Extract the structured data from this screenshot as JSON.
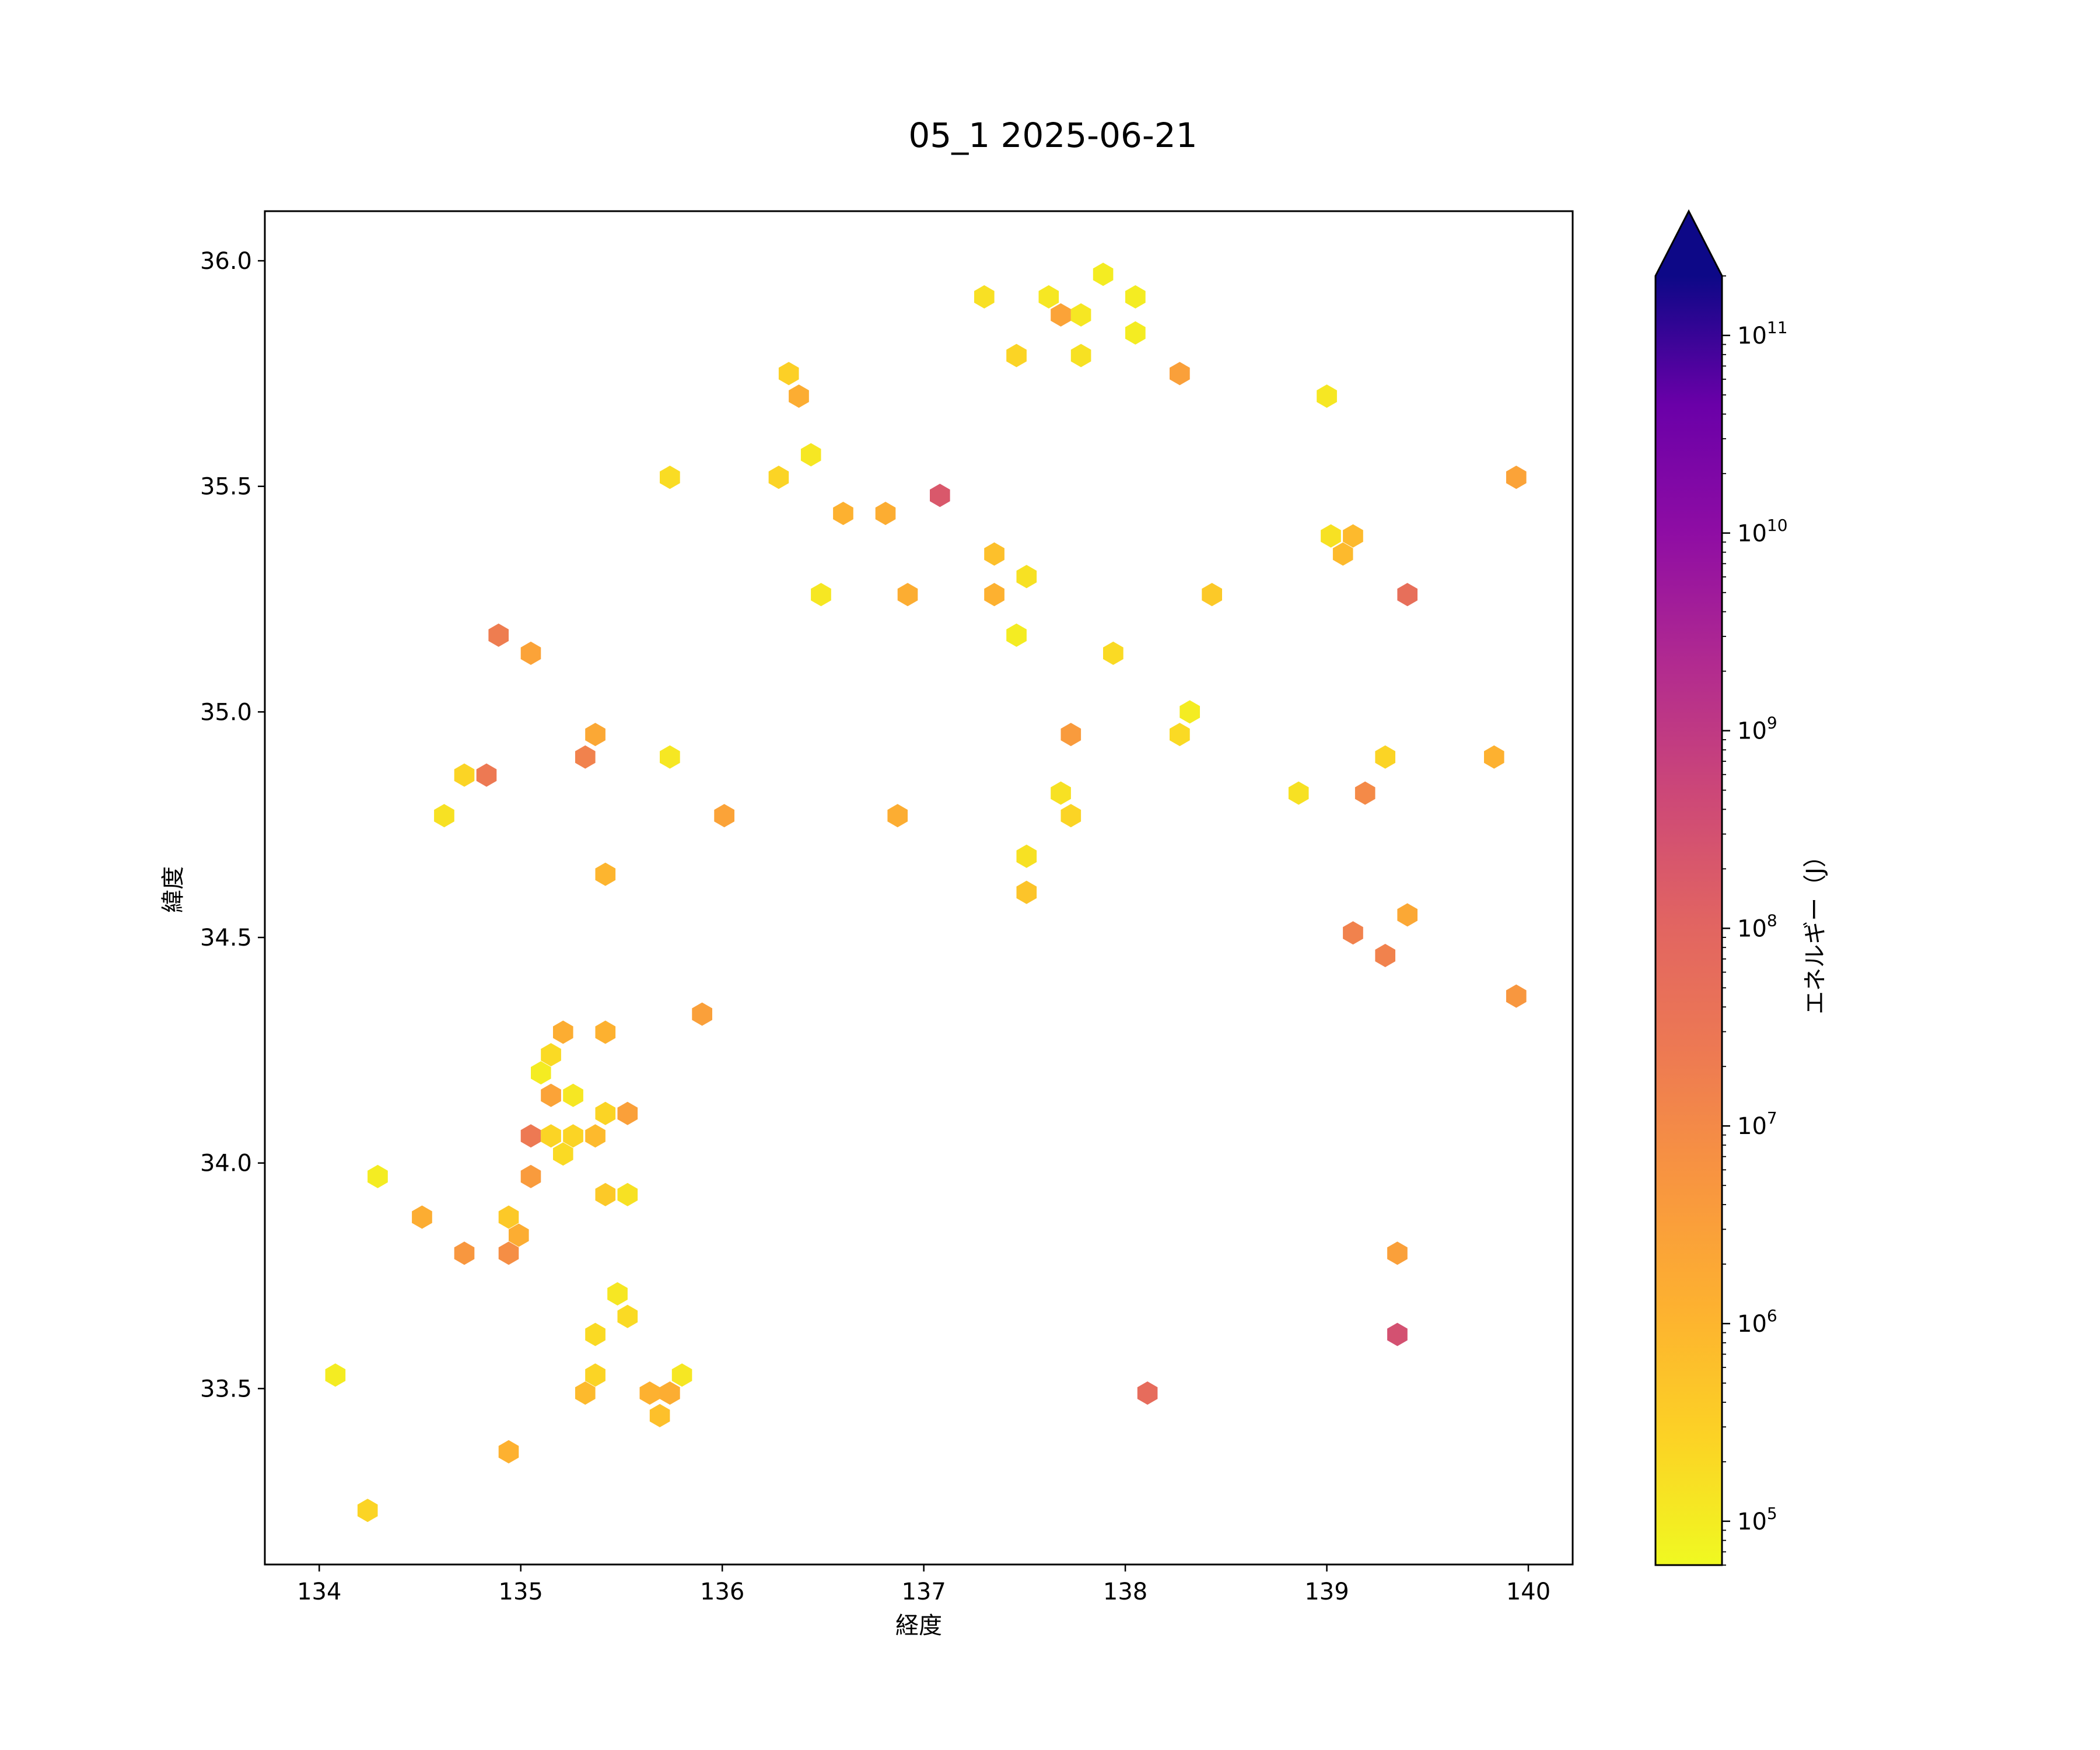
{
  "chart_data": {
    "type": "hexbin",
    "title": "05_1 2025-06-21",
    "xlabel": "経度",
    "ylabel": "緯度",
    "xlim": [
      133.73,
      140.22
    ],
    "ylim": [
      33.11,
      36.11
    ],
    "xticks": [
      134,
      135,
      136,
      137,
      138,
      139,
      140
    ],
    "yticks": [
      33.5,
      34.0,
      34.5,
      35.0,
      35.5,
      36.0
    ],
    "xtick_labels": [
      "134",
      "135",
      "136",
      "137",
      "138",
      "139",
      "140"
    ],
    "ytick_labels": [
      "33.5",
      "34.0",
      "34.5",
      "35.0",
      "35.5",
      "36.0"
    ],
    "grid": false,
    "colorbar": {
      "label": "エネルギー（J）",
      "scale": "log",
      "colormap": "plasma_r",
      "extend": "max",
      "range": [
        60000,
        200000000000
      ],
      "major_ticks": [
        {
          "value": 100000,
          "base": "10",
          "exp": "5"
        },
        {
          "value": 1000000,
          "base": "10",
          "exp": "6"
        },
        {
          "value": 10000000,
          "base": "10",
          "exp": "7"
        },
        {
          "value": 100000000,
          "base": "10",
          "exp": "8"
        },
        {
          "value": 1000000000,
          "base": "10",
          "exp": "9"
        },
        {
          "value": 10000000000,
          "base": "10",
          "exp": "10"
        },
        {
          "value": 100000000000,
          "base": "10",
          "exp": "11"
        }
      ]
    },
    "points": [
      [
        137.3,
        35.92,
        160000
      ],
      [
        137.62,
        35.92,
        120000
      ],
      [
        137.68,
        35.88,
        2500000
      ],
      [
        137.78,
        35.88,
        120000
      ],
      [
        137.89,
        35.97,
        100000
      ],
      [
        138.05,
        35.92,
        100000
      ],
      [
        138.05,
        35.84,
        100000
      ],
      [
        137.46,
        35.79,
        250000
      ],
      [
        137.78,
        35.79,
        150000
      ],
      [
        138.27,
        35.75,
        3000000
      ],
      [
        136.33,
        35.75,
        300000
      ],
      [
        136.38,
        35.7,
        1500000
      ],
      [
        136.44,
        35.57,
        120000
      ],
      [
        136.28,
        35.52,
        250000
      ],
      [
        135.74,
        35.52,
        180000
      ],
      [
        136.6,
        35.44,
        1200000
      ],
      [
        136.81,
        35.44,
        1500000
      ],
      [
        137.08,
        35.48,
        200000000
      ],
      [
        137.35,
        35.35,
        600000
      ],
      [
        137.35,
        35.26,
        1200000
      ],
      [
        137.51,
        35.3,
        150000
      ],
      [
        136.49,
        35.26,
        120000
      ],
      [
        136.92,
        35.26,
        1500000
      ],
      [
        137.46,
        35.17,
        100000
      ],
      [
        137.94,
        35.13,
        200000
      ],
      [
        138.43,
        35.26,
        400000
      ],
      [
        139.0,
        35.7,
        120000
      ],
      [
        139.02,
        35.39,
        150000
      ],
      [
        139.08,
        35.35,
        800000
      ],
      [
        139.13,
        35.39,
        800000
      ],
      [
        139.4,
        35.26,
        50000000
      ],
      [
        139.94,
        35.52,
        2500000
      ],
      [
        134.89,
        35.17,
        20000000
      ],
      [
        135.05,
        35.13,
        2500000
      ],
      [
        134.72,
        34.86,
        250000
      ],
      [
        134.83,
        34.86,
        25000000
      ],
      [
        134.62,
        34.77,
        150000
      ],
      [
        135.32,
        34.9,
        15000000
      ],
      [
        135.37,
        34.95,
        2000000
      ],
      [
        135.74,
        34.9,
        120000
      ],
      [
        136.01,
        34.77,
        2500000
      ],
      [
        136.87,
        34.77,
        1500000
      ],
      [
        137.73,
        34.95,
        4000000
      ],
      [
        137.68,
        34.82,
        150000
      ],
      [
        137.73,
        34.77,
        250000
      ],
      [
        138.27,
        34.95,
        200000
      ],
      [
        138.32,
        35.0,
        100000
      ],
      [
        138.86,
        34.82,
        150000
      ],
      [
        139.29,
        34.9,
        250000
      ],
      [
        139.19,
        34.82,
        10000000
      ],
      [
        139.83,
        34.9,
        1200000
      ],
      [
        137.51,
        34.68,
        150000
      ],
      [
        137.51,
        34.6,
        500000
      ],
      [
        135.42,
        34.64,
        1000000
      ],
      [
        139.13,
        34.51,
        15000000
      ],
      [
        139.4,
        34.55,
        2000000
      ],
      [
        139.29,
        34.46,
        15000000
      ],
      [
        139.94,
        34.37,
        5000000
      ],
      [
        135.9,
        34.33,
        3000000
      ],
      [
        135.21,
        34.29,
        1500000
      ],
      [
        135.42,
        34.29,
        1200000
      ],
      [
        135.15,
        34.24,
        200000
      ],
      [
        135.1,
        34.2,
        100000
      ],
      [
        135.15,
        34.15,
        2500000
      ],
      [
        135.26,
        34.15,
        120000
      ],
      [
        135.42,
        34.11,
        250000
      ],
      [
        135.53,
        34.11,
        3000000
      ],
      [
        135.05,
        34.06,
        25000000
      ],
      [
        135.15,
        34.06,
        250000
      ],
      [
        135.26,
        34.06,
        250000
      ],
      [
        135.37,
        34.06,
        800000
      ],
      [
        135.21,
        34.02,
        200000
      ],
      [
        135.05,
        33.97,
        4000000
      ],
      [
        134.29,
        33.97,
        100000
      ],
      [
        134.51,
        33.88,
        1500000
      ],
      [
        134.94,
        33.88,
        400000
      ],
      [
        134.99,
        33.84,
        1500000
      ],
      [
        135.42,
        33.93,
        400000
      ],
      [
        135.53,
        33.93,
        150000
      ],
      [
        134.72,
        33.8,
        5000000
      ],
      [
        134.94,
        33.8,
        8000000
      ],
      [
        135.48,
        33.71,
        120000
      ],
      [
        135.53,
        33.66,
        200000
      ],
      [
        135.37,
        33.62,
        200000
      ],
      [
        135.37,
        33.53,
        250000
      ],
      [
        135.32,
        33.49,
        800000
      ],
      [
        135.64,
        33.49,
        1200000
      ],
      [
        135.74,
        33.49,
        1500000
      ],
      [
        135.69,
        33.44,
        600000
      ],
      [
        135.8,
        33.53,
        120000
      ],
      [
        134.08,
        33.53,
        100000
      ],
      [
        134.94,
        33.36,
        1200000
      ],
      [
        134.24,
        33.23,
        250000
      ],
      [
        139.35,
        33.8,
        3000000
      ],
      [
        139.35,
        33.62,
        300000000
      ],
      [
        138.11,
        33.49,
        60000000
      ]
    ]
  }
}
